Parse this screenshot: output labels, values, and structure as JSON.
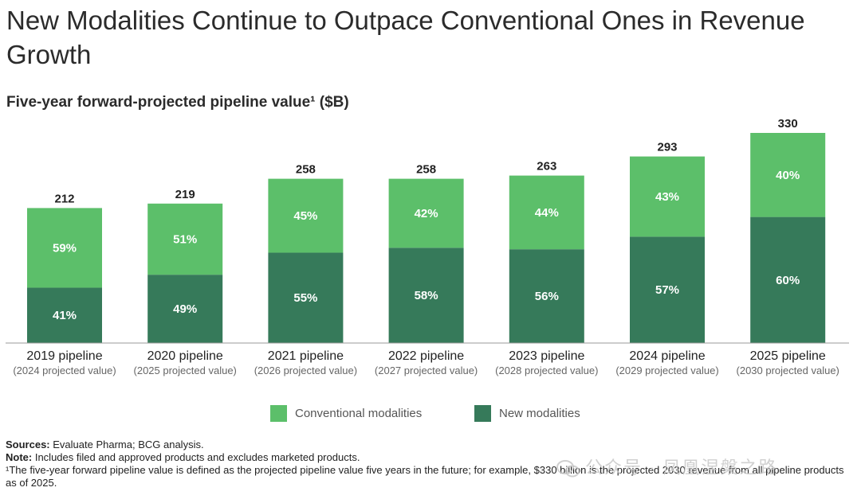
{
  "title": "New Modalities Continue to Outpace Conventional Ones in Revenue Growth",
  "chart_data": {
    "type": "bar",
    "stacked": true,
    "title": "Five-year forward-projected pipeline value¹ ($B)",
    "categories": [
      "2019 pipeline",
      "2020 pipeline",
      "2021 pipeline",
      "2022 pipeline",
      "2023 pipeline",
      "2024 pipeline",
      "2025 pipeline"
    ],
    "sub_labels": [
      "(2024 projected value)",
      "(2025 projected value)",
      "(2026 projected value)",
      "(2027 projected value)",
      "(2028 projected value)",
      "(2029 projected value)",
      "(2030 projected value)"
    ],
    "totals": [
      212,
      219,
      258,
      258,
      263,
      293,
      330
    ],
    "series": [
      {
        "name": "New modalities",
        "color": "#367a5a",
        "values_pct": [
          41,
          49,
          55,
          58,
          56,
          57,
          60
        ]
      },
      {
        "name": "Conventional modalities",
        "color": "#5cbf6a",
        "values_pct": [
          59,
          51,
          45,
          42,
          44,
          43,
          40
        ]
      }
    ],
    "ylim": [
      0,
      340
    ]
  },
  "legend": {
    "conventional": "Conventional modalities",
    "new": "New modalities"
  },
  "footer": {
    "sources_label": "Sources:",
    "sources_text": "Evaluate Pharma; BCG analysis.",
    "note_label": "Note:",
    "note_text": "Includes filed and approved products and excludes marketed products.",
    "footnote": "¹The five-year forward pipeline value is defined as the projected pipeline value five years in the future; for example, $330 billion is the projected 2030 revenue from all pipeline products as of 2025."
  },
  "watermark": "公众号 · 凤凰涅槃之路"
}
